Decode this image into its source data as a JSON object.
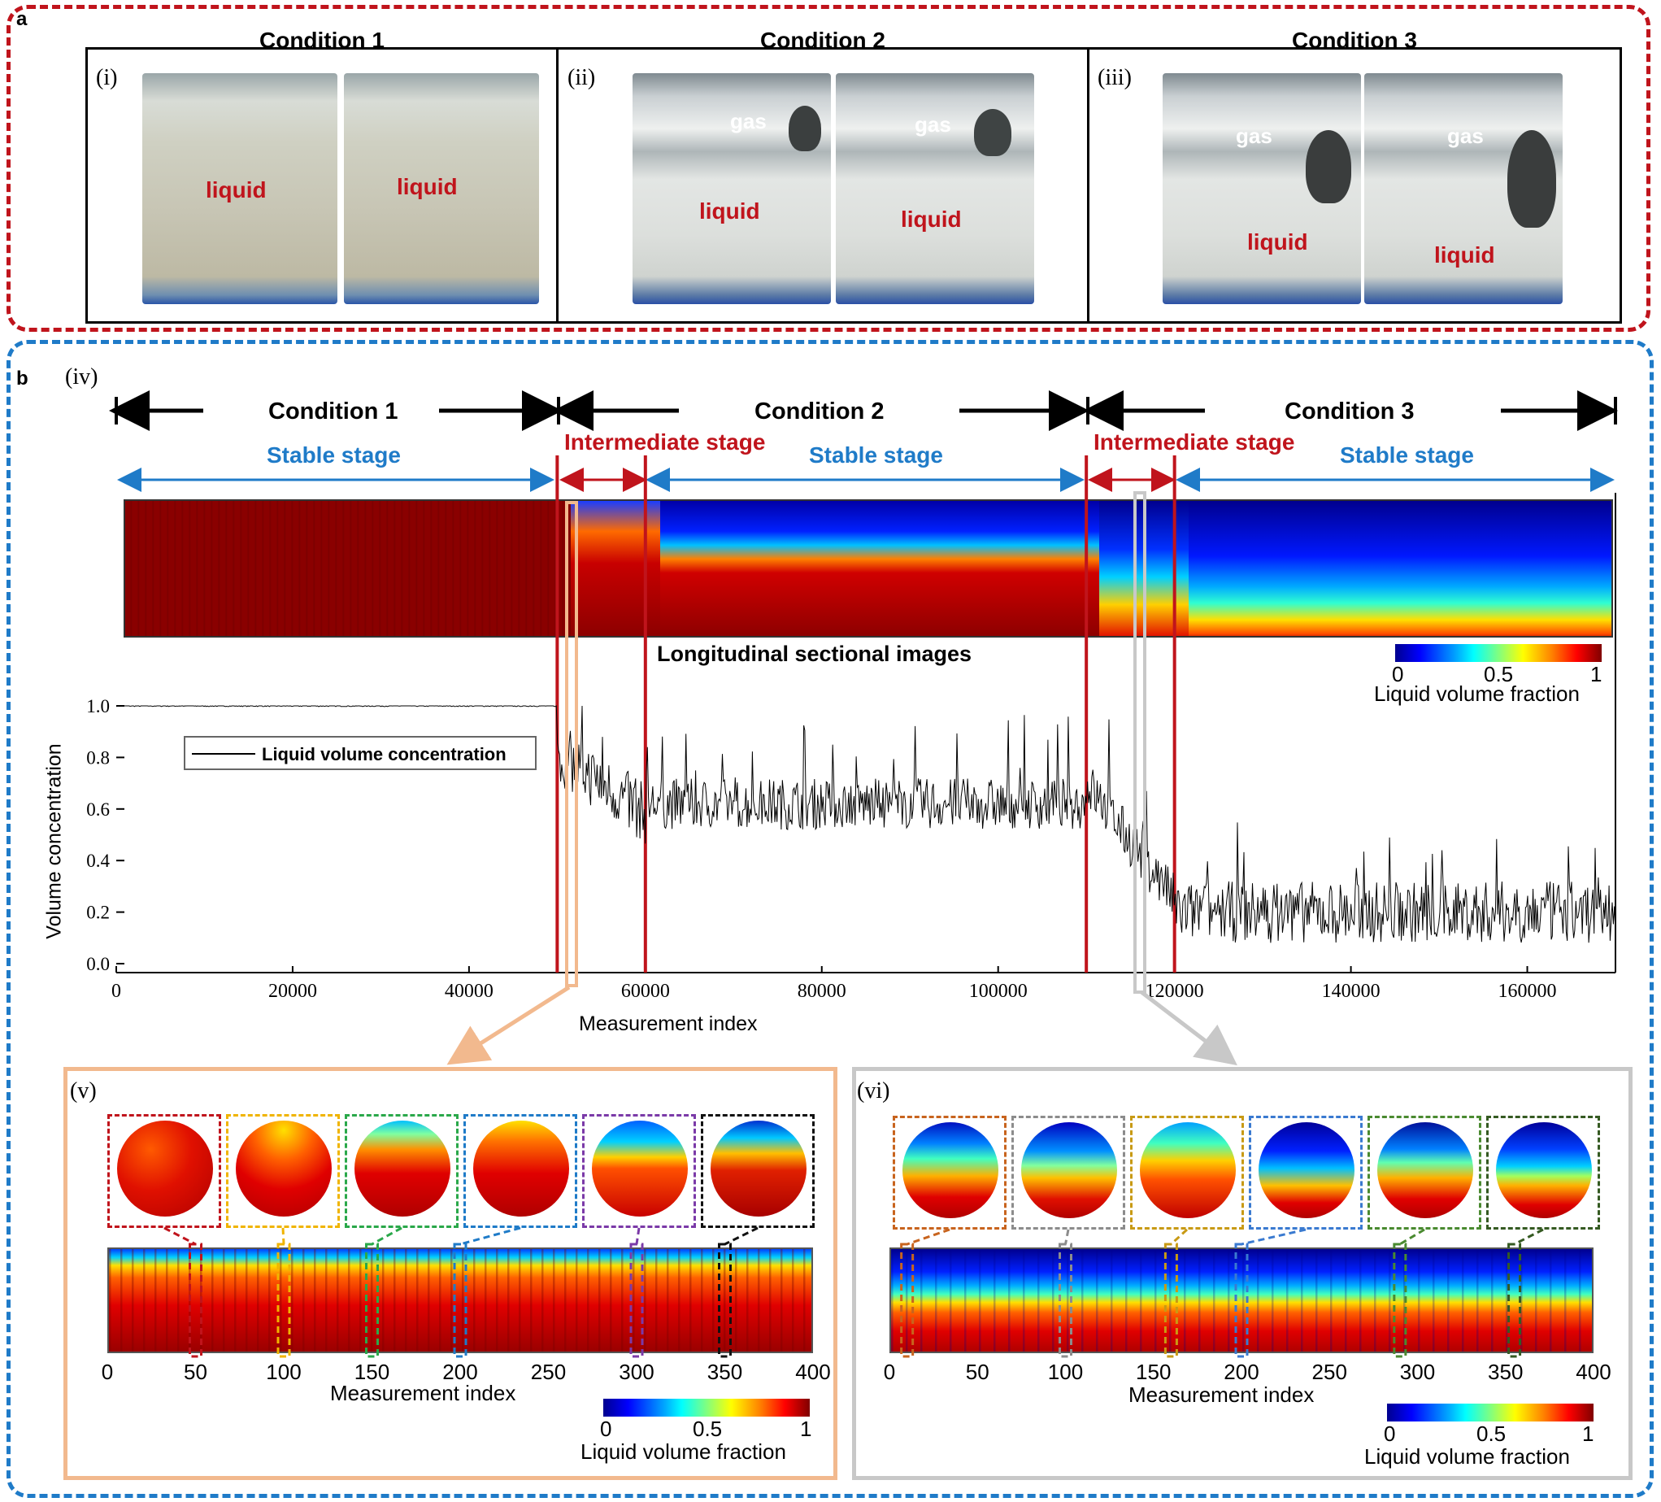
{
  "panel_a": {
    "label": "a",
    "conditions": [
      {
        "title": "Condition 1",
        "roman": "(i)",
        "photos": [
          {
            "gas": "",
            "liquid": "liquid"
          },
          {
            "gas": "",
            "liquid": "liquid"
          }
        ]
      },
      {
        "title": "Condition 2",
        "roman": "(ii)",
        "photos": [
          {
            "gas": "gas",
            "liquid": "liquid"
          },
          {
            "gas": "gas",
            "liquid": "liquid"
          }
        ]
      },
      {
        "title": "Condition 3",
        "roman": "(iii)",
        "photos": [
          {
            "gas": "gas",
            "liquid": "liquid"
          },
          {
            "gas": "gas",
            "liquid": "liquid"
          }
        ]
      }
    ]
  },
  "panel_b": {
    "label": "b",
    "roman_iv": "(iv)",
    "conditions": [
      "Condition 1",
      "Condition 2",
      "Condition 3"
    ],
    "stable_stage": "Stable stage",
    "intermediate_stage": "Intermediate stage",
    "heatmap_caption": "Longitudinal sectional images",
    "colorbar": {
      "min": "0",
      "mid": "0.5",
      "max": "1",
      "label": "Liquid volume fraction"
    },
    "colors": {
      "stage_red": "#c0141c",
      "stage_blue": "#1f7bc8",
      "zoom_v": "#f2b98e",
      "zoom_vi": "#c8c8c8"
    }
  },
  "chart_data": {
    "type": "line",
    "title": "",
    "xlabel": "Measurement index",
    "ylabel": "Volume concentration",
    "legend": "Liquid volume concentration",
    "xlim": [
      0,
      170000
    ],
    "ylim": [
      0.0,
      1.0
    ],
    "xticks": [
      "0",
      "20000",
      "40000",
      "60000",
      "80000",
      "100000",
      "120000",
      "140000",
      "160000"
    ],
    "yticks": [
      "0.0",
      "0.2",
      "0.4",
      "0.6",
      "0.8",
      "1.0"
    ],
    "stage_boundaries": [
      50000,
      60000,
      110000,
      120000
    ],
    "series": [
      {
        "name": "Liquid volume concentration",
        "segments": [
          {
            "x": [
              0,
              50000
            ],
            "mean": 1.0,
            "spread": 0.003
          },
          {
            "x": [
              50000,
              60000
            ],
            "mean_start": 0.82,
            "mean_end": 0.58,
            "spread": 0.12
          },
          {
            "x": [
              60000,
              110000
            ],
            "mean": 0.62,
            "spread": 0.1
          },
          {
            "x": [
              110000,
              120000
            ],
            "mean_start": 0.7,
            "mean_end": 0.25,
            "spread": 0.1
          },
          {
            "x": [
              120000,
              170000
            ],
            "mean": 0.2,
            "spread": 0.12
          }
        ]
      }
    ]
  },
  "panel_v": {
    "roman": "(v)",
    "xlabel": "Measurement index",
    "xticks": [
      "0",
      "50",
      "100",
      "150",
      "200",
      "250",
      "300",
      "350",
      "400"
    ],
    "highlight_index": [
      50,
      100,
      150,
      200,
      300,
      350
    ],
    "box_colors": [
      "#c0141c",
      "#f0b400",
      "#2aa84a",
      "#1f7bc8",
      "#7b3aa8",
      "#111111"
    ],
    "colorbar": {
      "min": "0",
      "mid": "0.5",
      "max": "1",
      "label": "Liquid volume fraction"
    }
  },
  "panel_vi": {
    "roman": "(vi)",
    "xlabel": "Measurement index",
    "xticks": [
      "0",
      "50",
      "100",
      "150",
      "200",
      "250",
      "300",
      "350",
      "400"
    ],
    "highlight_index": [
      10,
      100,
      160,
      200,
      290,
      355
    ],
    "box_colors": [
      "#c8641e",
      "#8c8c8c",
      "#c89a14",
      "#3a7ad0",
      "#4a8a30",
      "#355a22"
    ],
    "colorbar": {
      "min": "0",
      "mid": "0.5",
      "max": "1",
      "label": "Liquid volume fraction"
    }
  }
}
